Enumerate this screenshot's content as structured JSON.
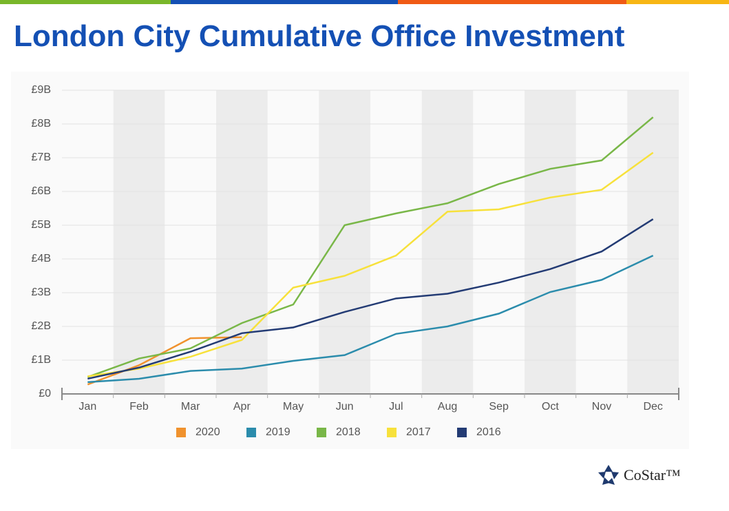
{
  "chart_data": {
    "type": "line",
    "title": "London City Cumulative Office Investment",
    "categories": [
      "Jan",
      "Feb",
      "Mar",
      "Apr",
      "May",
      "Jun",
      "Jul",
      "Aug",
      "Sep",
      "Oct",
      "Nov",
      "Dec"
    ],
    "series": [
      {
        "name": "2020",
        "color": "#f0922e",
        "values": [
          0.28,
          0.85,
          1.65,
          1.68,
          null,
          null,
          null,
          null,
          null,
          null,
          null,
          null
        ]
      },
      {
        "name": "2019",
        "color": "#2b8cac",
        "values": [
          0.35,
          0.45,
          0.68,
          0.75,
          0.98,
          1.15,
          1.78,
          2.0,
          2.38,
          3.02,
          3.38,
          4.1
        ]
      },
      {
        "name": "2018",
        "color": "#79b748",
        "values": [
          0.5,
          1.05,
          1.35,
          2.1,
          2.65,
          5.0,
          5.35,
          5.65,
          6.22,
          6.67,
          6.92,
          8.2
        ]
      },
      {
        "name": "2017",
        "color": "#f7e13b",
        "values": [
          0.52,
          0.75,
          1.1,
          1.6,
          3.15,
          3.5,
          4.1,
          5.4,
          5.47,
          5.82,
          6.05,
          7.15
        ]
      },
      {
        "name": "2016",
        "color": "#233b74",
        "values": [
          0.45,
          0.78,
          1.25,
          1.8,
          1.97,
          2.43,
          2.83,
          2.97,
          3.3,
          3.7,
          4.22,
          5.18
        ]
      }
    ],
    "ylim": [
      0,
      9
    ],
    "yticks": [
      {
        "value": 0,
        "label": "£0"
      },
      {
        "value": 1,
        "label": "£1B"
      },
      {
        "value": 2,
        "label": "£2B"
      },
      {
        "value": 3,
        "label": "£3B"
      },
      {
        "value": 4,
        "label": "£4B"
      },
      {
        "value": 5,
        "label": "£5B"
      },
      {
        "value": 6,
        "label": "£6B"
      },
      {
        "value": 7,
        "label": "£7B"
      },
      {
        "value": 8,
        "label": "£8B"
      },
      {
        "value": 9,
        "label": "£9B"
      }
    ],
    "grid": true,
    "legend": "bottom",
    "logo": "CoStar™"
  }
}
